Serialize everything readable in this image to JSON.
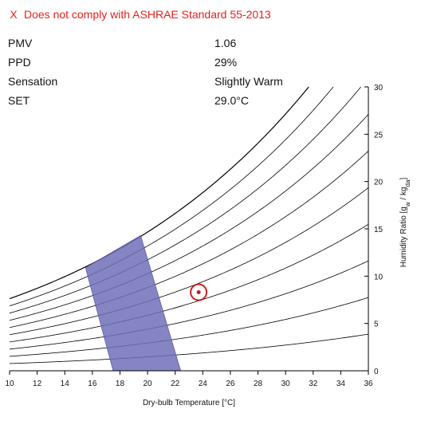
{
  "compliance": {
    "icon": "x-icon",
    "mark": "X",
    "message": "Does not comply with ASHRAE Standard 55-2013",
    "color": "#e8211d"
  },
  "results": [
    {
      "label": "PMV",
      "value": "1.06"
    },
    {
      "label": "PPD",
      "value": "29%"
    },
    {
      "label": "Sensation",
      "value": "Slightly Warm"
    },
    {
      "label": "SET",
      "value": "29.0°C"
    }
  ],
  "chart_data": {
    "type": "scatter",
    "title": "",
    "xlabel": "Dry-bulb Temperature [°C]",
    "ylabel_main": "Humidity Ratio [g",
    "ylabel_sub1": "w",
    "ylabel_mid": " / kg",
    "ylabel_sub2": "da",
    "ylabel_end": "]",
    "xlim": [
      10,
      36
    ],
    "ylim": [
      0,
      30
    ],
    "xticks": [
      "10",
      "12",
      "14",
      "16",
      "18",
      "20",
      "22",
      "24",
      "26",
      "28",
      "30",
      "32",
      "34",
      "36"
    ],
    "yticks": [
      "0",
      "5",
      "10",
      "15",
      "20",
      "25",
      "30"
    ],
    "y_axis_side": "right",
    "relative_humidity_curves_percent": [
      10,
      20,
      30,
      40,
      50,
      60,
      70,
      80,
      90,
      100
    ],
    "comfort_zone": {
      "color": "#7070b8",
      "polygon": [
        [
          15.5,
          10.9
        ],
        [
          19.5,
          14.3
        ],
        [
          22.4,
          0
        ],
        [
          17.5,
          0
        ]
      ]
    },
    "operating_point": {
      "x": 23.7,
      "y": 8.3,
      "color": "#c81e1e"
    },
    "grid": false
  }
}
